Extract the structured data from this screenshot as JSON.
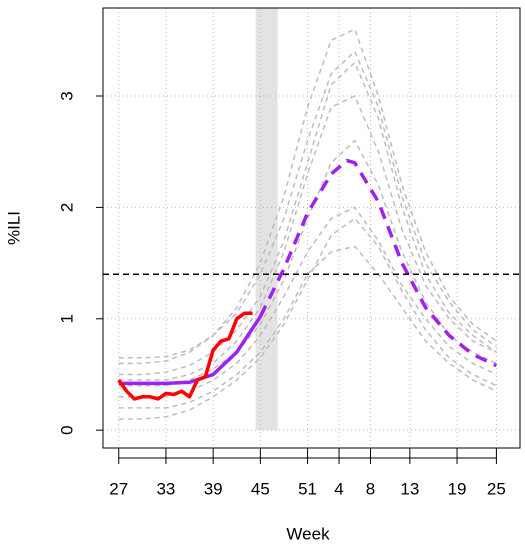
{
  "chart_data": {
    "type": "line",
    "xlabel": "Week",
    "ylabel": "%ILI",
    "xlim": [
      -2,
      51
    ],
    "ylim": [
      -0.16,
      3.79
    ],
    "xticks": [
      {
        "value": 0,
        "label": "27"
      },
      {
        "value": 6,
        "label": "33"
      },
      {
        "value": 12,
        "label": "39"
      },
      {
        "value": 18,
        "label": "45"
      },
      {
        "value": 24,
        "label": "51"
      },
      {
        "value": 28,
        "label": "4"
      },
      {
        "value": 32,
        "label": "8"
      },
      {
        "value": 37,
        "label": "13"
      },
      {
        "value": 43,
        "label": "19"
      },
      {
        "value": 48,
        "label": "25"
      }
    ],
    "yticks": [
      0,
      1,
      2,
      3
    ],
    "grid": true,
    "shade": {
      "x": [
        17.4,
        20.2
      ],
      "color": "#e3e3e3"
    },
    "hline": {
      "y": 1.4,
      "color": "#000000"
    },
    "series": [
      {
        "color": "#bdbdbd",
        "dash": true,
        "x": [
          0,
          3,
          6,
          9,
          12,
          15,
          18,
          21,
          24,
          27,
          30,
          33,
          36,
          39,
          42,
          45,
          48
        ],
        "values": [
          0.45,
          0.45,
          0.45,
          0.5,
          0.6,
          0.8,
          1.1,
          1.6,
          2.3,
          2.9,
          3.0,
          2.5,
          1.8,
          1.3,
          1.0,
          0.8,
          0.7
        ]
      },
      {
        "color": "#bdbdbd",
        "dash": true,
        "x": [
          0,
          3,
          6,
          9,
          12,
          15,
          18,
          21,
          24,
          27,
          30,
          33,
          36,
          39,
          42,
          45,
          48
        ],
        "values": [
          0.3,
          0.3,
          0.3,
          0.35,
          0.45,
          0.6,
          0.85,
          1.2,
          1.6,
          1.9,
          2.0,
          1.7,
          1.3,
          1.0,
          0.75,
          0.6,
          0.5
        ]
      },
      {
        "color": "#bdbdbd",
        "dash": true,
        "x": [
          0,
          3,
          6,
          9,
          12,
          15,
          18,
          21,
          24,
          27,
          30,
          33,
          36,
          39,
          42,
          45,
          48
        ],
        "values": [
          0.6,
          0.6,
          0.62,
          0.7,
          0.85,
          1.1,
          1.5,
          2.1,
          2.9,
          3.5,
          3.6,
          3.0,
          2.2,
          1.6,
          1.2,
          0.95,
          0.8
        ]
      },
      {
        "color": "#bdbdbd",
        "dash": true,
        "x": [
          0,
          3,
          6,
          9,
          12,
          15,
          18,
          21,
          24,
          27,
          30,
          33,
          36,
          39,
          42,
          45,
          48
        ],
        "values": [
          0.2,
          0.2,
          0.2,
          0.25,
          0.35,
          0.5,
          0.7,
          1.0,
          1.4,
          1.6,
          1.65,
          1.4,
          1.1,
          0.8,
          0.6,
          0.45,
          0.35
        ]
      },
      {
        "color": "#bdbdbd",
        "dash": true,
        "x": [
          0,
          3,
          6,
          9,
          12,
          15,
          18,
          21,
          24,
          27,
          30,
          33,
          36,
          39,
          42,
          45,
          48
        ],
        "values": [
          0.5,
          0.5,
          0.52,
          0.58,
          0.7,
          0.9,
          1.2,
          1.7,
          2.4,
          3.1,
          3.3,
          2.8,
          2.0,
          1.4,
          1.05,
          0.85,
          0.7
        ]
      },
      {
        "color": "#bdbdbd",
        "dash": true,
        "x": [
          0,
          3,
          6,
          9,
          12,
          15,
          18,
          21,
          24,
          27,
          30,
          33,
          36,
          39,
          42,
          45,
          48
        ],
        "values": [
          0.4,
          0.4,
          0.4,
          0.45,
          0.55,
          0.7,
          0.95,
          1.35,
          1.9,
          2.4,
          2.6,
          2.2,
          1.6,
          1.15,
          0.85,
          0.7,
          0.6
        ]
      },
      {
        "color": "#bdbdbd",
        "dash": true,
        "x": [
          0,
          3,
          6,
          9,
          12,
          15,
          18,
          21,
          24,
          27,
          30,
          33,
          36,
          39,
          42,
          45,
          48
        ],
        "values": [
          0.1,
          0.1,
          0.12,
          0.18,
          0.3,
          0.45,
          0.65,
          0.95,
          1.35,
          1.75,
          1.9,
          1.65,
          1.25,
          0.9,
          0.65,
          0.5,
          0.4
        ]
      },
      {
        "color": "#bdbdbd",
        "dash": true,
        "x": [
          0,
          3,
          6,
          9,
          12,
          15,
          18,
          21,
          24,
          27,
          30,
          33,
          36,
          39,
          42,
          45,
          48
        ],
        "values": [
          0.65,
          0.65,
          0.66,
          0.72,
          0.85,
          1.05,
          1.4,
          1.9,
          2.6,
          3.2,
          3.4,
          2.9,
          2.1,
          1.5,
          1.15,
          0.9,
          0.75
        ]
      },
      {
        "color": "#a020f0",
        "dash": false,
        "x": [
          0,
          3,
          6,
          9,
          12,
          15,
          18
        ],
        "values": [
          0.42,
          0.42,
          0.42,
          0.43,
          0.5,
          0.7,
          1.02
        ]
      },
      {
        "color": "#a020f0",
        "dash": true,
        "x": [
          18,
          21,
          24,
          27,
          29,
          30,
          33,
          36,
          39,
          42,
          45,
          48
        ],
        "values": [
          1.02,
          1.45,
          1.95,
          2.3,
          2.42,
          2.4,
          2.05,
          1.5,
          1.1,
          0.85,
          0.68,
          0.58
        ]
      },
      {
        "color": "#ff0000",
        "dash": false,
        "x": [
          0,
          1,
          2,
          3,
          4,
          5,
          6,
          7,
          8,
          9,
          10,
          11,
          12,
          13,
          14,
          15,
          16,
          17
        ],
        "values": [
          0.45,
          0.35,
          0.28,
          0.3,
          0.3,
          0.28,
          0.33,
          0.32,
          0.35,
          0.3,
          0.45,
          0.48,
          0.72,
          0.8,
          0.82,
          1.0,
          1.05,
          1.05
        ]
      }
    ]
  }
}
